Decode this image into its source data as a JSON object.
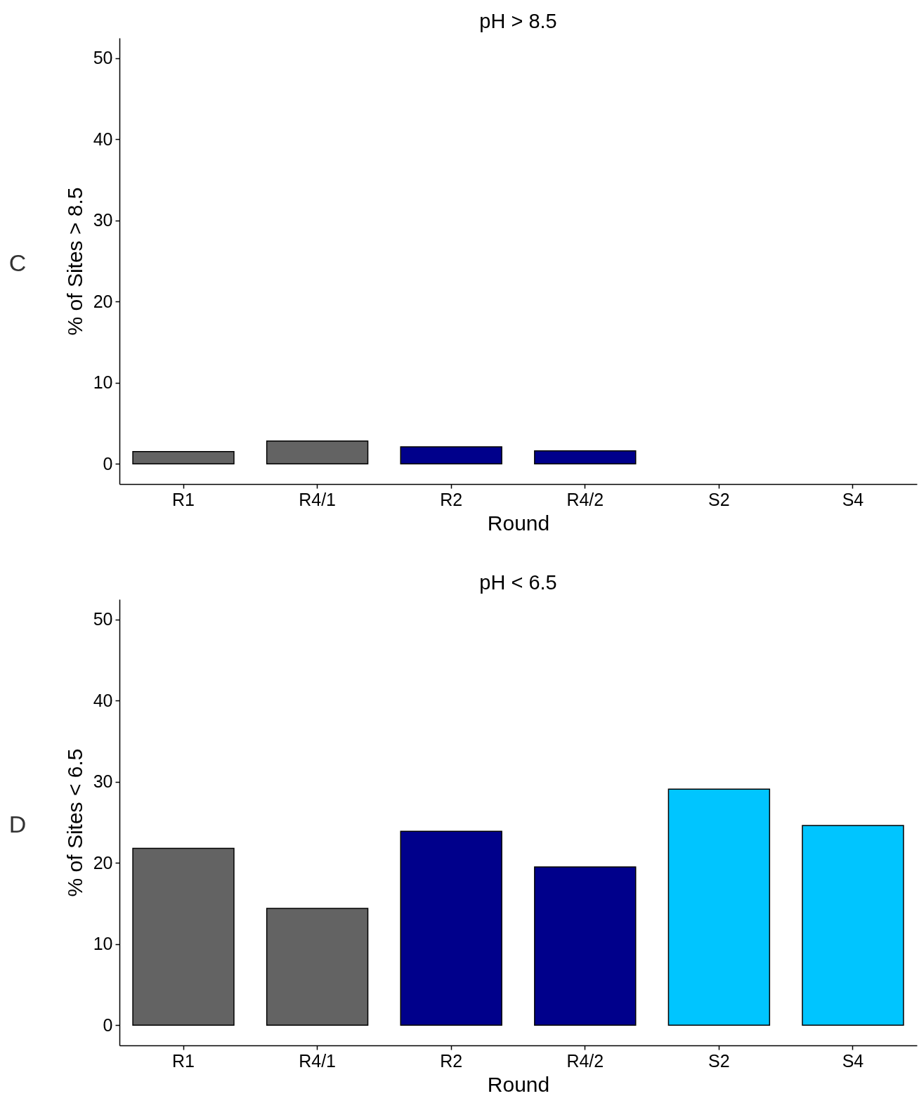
{
  "chart_data": [
    {
      "type": "bar",
      "title": "pH > 8.5",
      "xlabel": "Round",
      "ylabel": "% of Sites > 8.5",
      "categories": [
        "R1",
        "R4/1",
        "R2",
        "R4/2",
        "S2",
        "S4"
      ],
      "values": [
        1.5,
        2.8,
        2.1,
        1.6,
        null,
        null
      ],
      "colors": [
        "#636363",
        "#636363",
        "#00008b",
        "#00008b",
        "#00c5ff",
        "#00c5ff"
      ],
      "ylim": [
        -2.5,
        52.5
      ],
      "yticks": [
        0,
        10,
        20,
        30,
        40,
        50
      ],
      "grid": false,
      "annotations": [
        "C"
      ]
    },
    {
      "type": "bar",
      "title": "pH < 6.5",
      "xlabel": "Round",
      "ylabel": "% of Sites < 6.5",
      "categories": [
        "R1",
        "R4/1",
        "R2",
        "R4/2",
        "S2",
        "S4"
      ],
      "values": [
        21.8,
        14.4,
        23.9,
        19.5,
        29.1,
        24.6
      ],
      "colors": [
        "#636363",
        "#636363",
        "#00008b",
        "#00008b",
        "#00c5ff",
        "#00c5ff"
      ],
      "ylim": [
        -2.5,
        52.5
      ],
      "yticks": [
        0,
        10,
        20,
        30,
        40,
        50
      ],
      "grid": false,
      "annotations": [
        "D"
      ]
    }
  ]
}
